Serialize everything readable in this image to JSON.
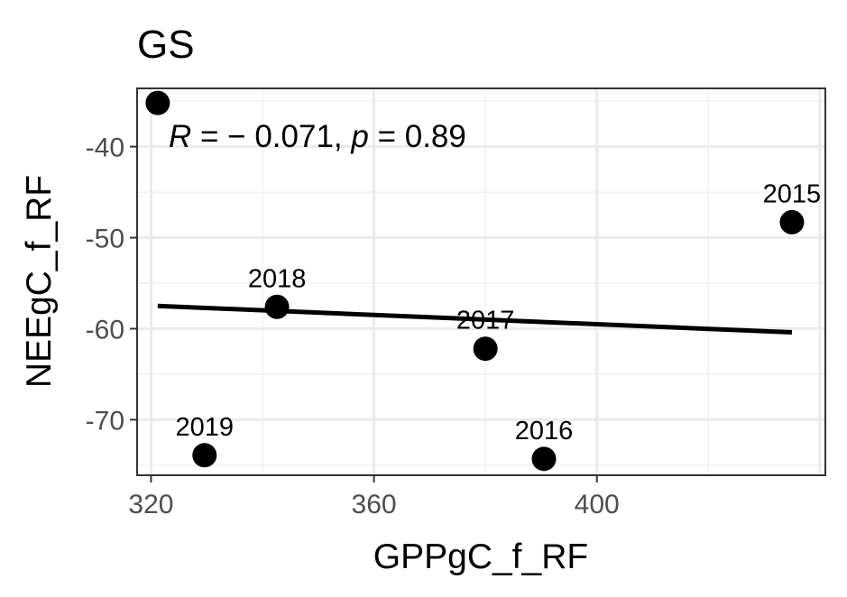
{
  "chart_data": {
    "type": "scatter",
    "title": "GS",
    "xlabel": "GPPgC_f_RF",
    "ylabel": "NEEgC_f_RF",
    "xlim": [
      317.5,
      441
    ],
    "ylim": [
      -76.1,
      -33.6
    ],
    "x_ticks": [
      320,
      360,
      400
    ],
    "x_tick_labels": [
      "320",
      "360",
      "400"
    ],
    "y_ticks": [
      -70,
      -60,
      -50,
      -40
    ],
    "y_tick_labels": [
      "-70",
      "-60",
      "-50",
      "-40"
    ],
    "grid": true,
    "points": [
      {
        "x": 321.2,
        "y": -35.2,
        "label": ""
      },
      {
        "x": 329.6,
        "y": -73.9,
        "label": "2019"
      },
      {
        "x": 342.6,
        "y": -57.6,
        "label": "2018"
      },
      {
        "x": 380.0,
        "y": -62.2,
        "label": "2017"
      },
      {
        "x": 390.5,
        "y": -74.3,
        "label": "2016"
      },
      {
        "x": 435.0,
        "y": -48.3,
        "label": "2015"
      }
    ],
    "regression_line": {
      "x": [
        321.2,
        435.0
      ],
      "y": [
        -57.5,
        -60.4
      ]
    },
    "annotation": {
      "r_symbol": "R",
      "r_text": " = − 0.071, ",
      "p_symbol": "p",
      "p_text": " = 0.89"
    }
  }
}
